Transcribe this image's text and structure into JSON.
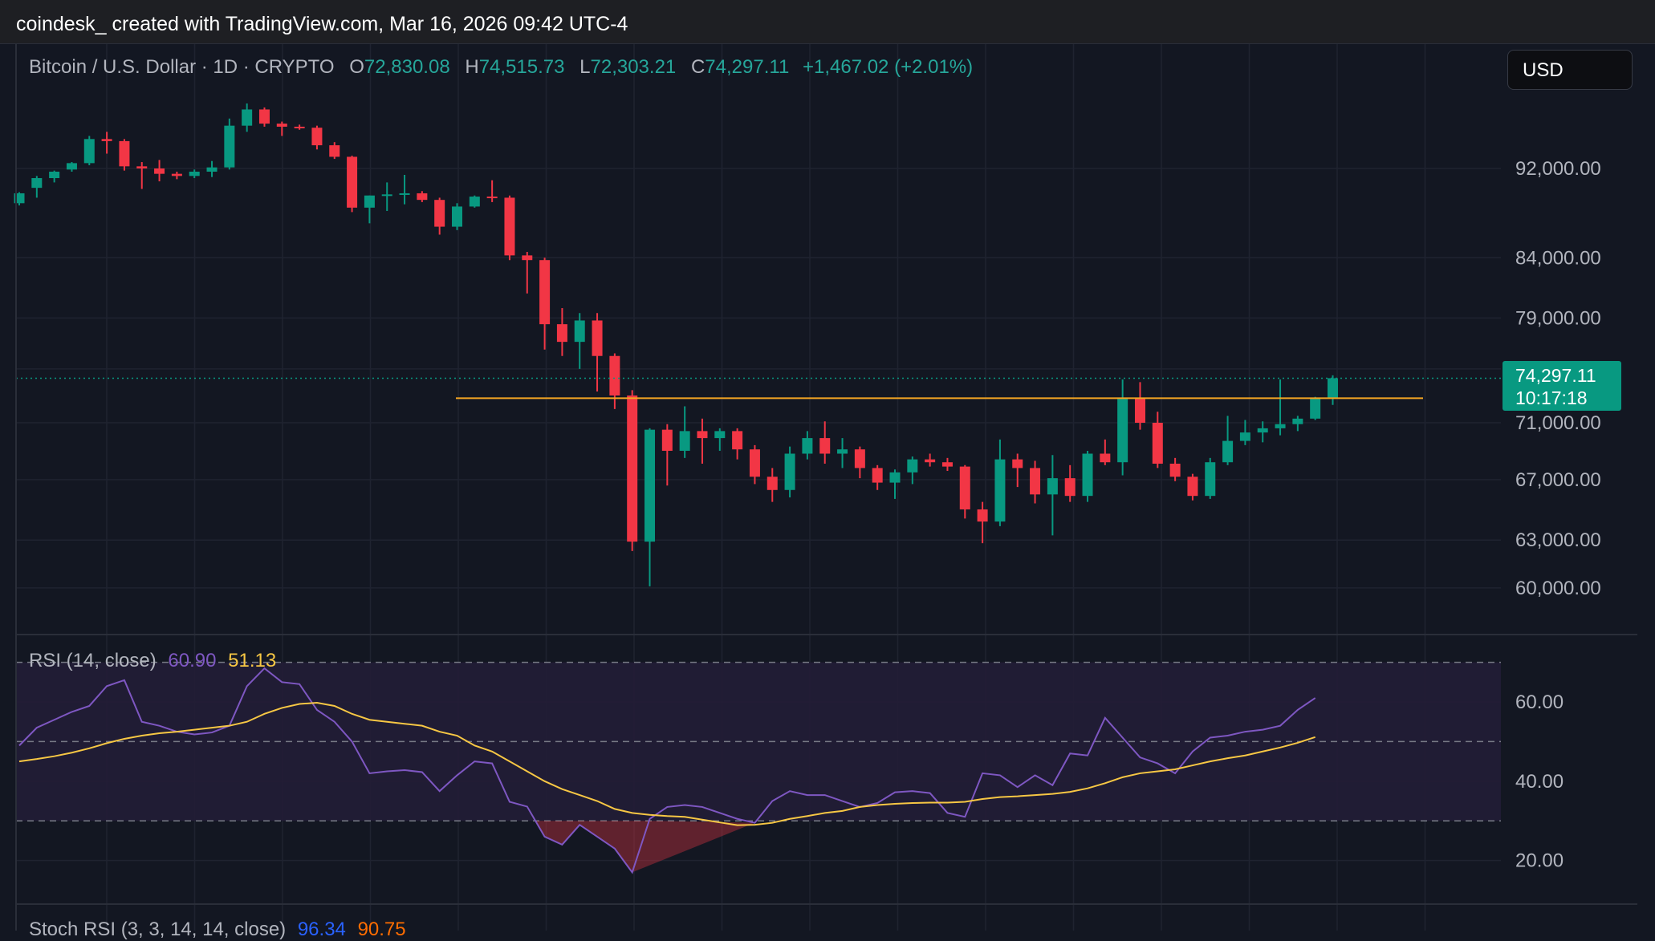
{
  "caption": "coindesk_ created with TradingView.com, Mar 16, 2026 09:42 UTC-4",
  "currency_button": "USD",
  "legend": {
    "symbol": "Bitcoin / U.S. Dollar · 1D · CRYPTO",
    "o_label": "O",
    "o_value": "72,830.08",
    "h_label": "H",
    "h_value": "74,515.73",
    "l_label": "L",
    "l_value": "72,303.21",
    "c_label": "C",
    "c_value": "74,297.11",
    "change": "+1,467.02 (+2.01%)"
  },
  "price_badge": {
    "price": "74,297.11",
    "countdown": "10:17:18"
  },
  "rsi": {
    "label": "RSI (14, close)",
    "rsi_value": "60.90",
    "ma_value": "51.13"
  },
  "stoch": {
    "label": "Stoch RSI (3, 3, 14, 14, close)",
    "k_value": "96.34",
    "d_value": "90.75"
  },
  "colors": {
    "background": "#131722",
    "up": "#089981",
    "down": "#f23645",
    "rsi_line": "#7e57c2",
    "rsi_ma": "#f7c744",
    "level_line": "#f5a623",
    "grid": "#1f2330"
  },
  "chart_data": [
    {
      "type": "candlestick",
      "title": "Bitcoin / U.S. Dollar · 1D · CRYPTO",
      "y_ticks": [
        92000,
        84000,
        79000,
        75000,
        71000,
        67000,
        63000,
        60000
      ],
      "y_tick_labels": [
        "92,000.00",
        "84,000.00",
        "79,000.00",
        "75,000.00",
        "71,000.00",
        "67,000.00",
        "63,000.00",
        "60,000.00"
      ],
      "y_scale": "log",
      "ylim": [
        57500,
        104000
      ],
      "grid": true,
      "horizontal_level": 72800,
      "last_price": 74297.11,
      "candles": [
        {
          "o": 88800,
          "h": 89800,
          "l": 88600,
          "c": 89700
        },
        {
          "o": 90200,
          "h": 91300,
          "l": 89300,
          "c": 91100
        },
        {
          "o": 91100,
          "h": 91800,
          "l": 90700,
          "c": 91700
        },
        {
          "o": 91900,
          "h": 92600,
          "l": 91700,
          "c": 92500
        },
        {
          "o": 92500,
          "h": 95100,
          "l": 92300,
          "c": 94800
        },
        {
          "o": 94800,
          "h": 95500,
          "l": 93400,
          "c": 94600
        },
        {
          "o": 94600,
          "h": 94800,
          "l": 91800,
          "c": 92200
        },
        {
          "o": 92200,
          "h": 92600,
          "l": 90100,
          "c": 92000
        },
        {
          "o": 92000,
          "h": 92800,
          "l": 90800,
          "c": 91500
        },
        {
          "o": 91500,
          "h": 91700,
          "l": 91000,
          "c": 91300
        },
        {
          "o": 91300,
          "h": 91900,
          "l": 91100,
          "c": 91700
        },
        {
          "o": 91700,
          "h": 92700,
          "l": 91200,
          "c": 92100
        },
        {
          "o": 92100,
          "h": 96800,
          "l": 91900,
          "c": 96100
        },
        {
          "o": 96100,
          "h": 98300,
          "l": 95500,
          "c": 97700
        },
        {
          "o": 97700,
          "h": 97900,
          "l": 96000,
          "c": 96300
        },
        {
          "o": 96300,
          "h": 96500,
          "l": 95100,
          "c": 96000
        },
        {
          "o": 96000,
          "h": 96200,
          "l": 95700,
          "c": 95900
        },
        {
          "o": 95900,
          "h": 96100,
          "l": 93800,
          "c": 94200
        },
        {
          "o": 94200,
          "h": 94500,
          "l": 92900,
          "c": 93100
        },
        {
          "o": 93100,
          "h": 93200,
          "l": 88000,
          "c": 88400
        },
        {
          "o": 88400,
          "h": 89500,
          "l": 87000,
          "c": 89500
        },
        {
          "o": 89500,
          "h": 90700,
          "l": 88100,
          "c": 89600
        },
        {
          "o": 89600,
          "h": 91400,
          "l": 88700,
          "c": 89700
        },
        {
          "o": 89700,
          "h": 89900,
          "l": 88900,
          "c": 89100
        },
        {
          "o": 89100,
          "h": 89300,
          "l": 86000,
          "c": 86700
        },
        {
          "o": 86700,
          "h": 88800,
          "l": 86400,
          "c": 88500
        },
        {
          "o": 88500,
          "h": 89500,
          "l": 88400,
          "c": 89400
        },
        {
          "o": 89400,
          "h": 90900,
          "l": 88900,
          "c": 89300
        },
        {
          "o": 89300,
          "h": 89500,
          "l": 83800,
          "c": 84200
        },
        {
          "o": 84200,
          "h": 84500,
          "l": 81000,
          "c": 83800
        },
        {
          "o": 83800,
          "h": 84000,
          "l": 76500,
          "c": 78500
        },
        {
          "o": 78500,
          "h": 79800,
          "l": 76000,
          "c": 77100
        },
        {
          "o": 77100,
          "h": 79400,
          "l": 75000,
          "c": 78800
        },
        {
          "o": 78800,
          "h": 79400,
          "l": 73300,
          "c": 76000
        },
        {
          "o": 76000,
          "h": 76200,
          "l": 72000,
          "c": 73000
        },
        {
          "o": 73000,
          "h": 73400,
          "l": 62300,
          "c": 62900
        },
        {
          "o": 62900,
          "h": 70600,
          "l": 60100,
          "c": 70500
        },
        {
          "o": 70500,
          "h": 70900,
          "l": 66600,
          "c": 69000
        },
        {
          "o": 69000,
          "h": 72200,
          "l": 68500,
          "c": 70400
        },
        {
          "o": 70400,
          "h": 71300,
          "l": 68100,
          "c": 69900
        },
        {
          "o": 69900,
          "h": 70600,
          "l": 69000,
          "c": 70400
        },
        {
          "o": 70400,
          "h": 70600,
          "l": 68400,
          "c": 69100
        },
        {
          "o": 69100,
          "h": 69400,
          "l": 66700,
          "c": 67200
        },
        {
          "o": 67200,
          "h": 67800,
          "l": 65500,
          "c": 66300
        },
        {
          "o": 66300,
          "h": 69300,
          "l": 65800,
          "c": 68800
        },
        {
          "o": 68800,
          "h": 70400,
          "l": 68400,
          "c": 69900
        },
        {
          "o": 69900,
          "h": 71100,
          "l": 68100,
          "c": 68800
        },
        {
          "o": 68800,
          "h": 69900,
          "l": 67800,
          "c": 69100
        },
        {
          "o": 69100,
          "h": 69300,
          "l": 67100,
          "c": 67800
        },
        {
          "o": 67800,
          "h": 68000,
          "l": 66300,
          "c": 66800
        },
        {
          "o": 66800,
          "h": 67700,
          "l": 65700,
          "c": 67500
        },
        {
          "o": 67500,
          "h": 68600,
          "l": 66700,
          "c": 68400
        },
        {
          "o": 68400,
          "h": 68800,
          "l": 67900,
          "c": 68200
        },
        {
          "o": 68200,
          "h": 68500,
          "l": 67600,
          "c": 67900
        },
        {
          "o": 67900,
          "h": 68000,
          "l": 64400,
          "c": 65000
        },
        {
          "o": 65000,
          "h": 65500,
          "l": 62800,
          "c": 64200
        },
        {
          "o": 64200,
          "h": 69800,
          "l": 63900,
          "c": 68400
        },
        {
          "o": 68400,
          "h": 68800,
          "l": 66500,
          "c": 67800
        },
        {
          "o": 67800,
          "h": 68300,
          "l": 65400,
          "c": 66000
        },
        {
          "o": 66000,
          "h": 68700,
          "l": 63300,
          "c": 67100
        },
        {
          "o": 67100,
          "h": 68000,
          "l": 65500,
          "c": 65900
        },
        {
          "o": 65900,
          "h": 69000,
          "l": 65500,
          "c": 68800
        },
        {
          "o": 68800,
          "h": 69800,
          "l": 68000,
          "c": 68200
        },
        {
          "o": 68200,
          "h": 74200,
          "l": 67300,
          "c": 72800
        },
        {
          "o": 72800,
          "h": 74000,
          "l": 70500,
          "c": 71000
        },
        {
          "o": 71000,
          "h": 71800,
          "l": 67800,
          "c": 68100
        },
        {
          "o": 68100,
          "h": 68500,
          "l": 66900,
          "c": 67200
        },
        {
          "o": 67200,
          "h": 67400,
          "l": 65600,
          "c": 65900
        },
        {
          "o": 65900,
          "h": 68500,
          "l": 65700,
          "c": 68200
        },
        {
          "o": 68200,
          "h": 71500,
          "l": 68000,
          "c": 69700
        },
        {
          "o": 69700,
          "h": 71200,
          "l": 69400,
          "c": 70300
        },
        {
          "o": 70300,
          "h": 71100,
          "l": 69600,
          "c": 70600
        },
        {
          "o": 70600,
          "h": 74200,
          "l": 70100,
          "c": 70900
        },
        {
          "o": 70900,
          "h": 71500,
          "l": 70400,
          "c": 71300
        },
        {
          "o": 71300,
          "h": 72900,
          "l": 71200,
          "c": 72800
        },
        {
          "o": 72830.08,
          "h": 74515.73,
          "l": 72303.21,
          "c": 74297.11
        }
      ]
    },
    {
      "type": "line",
      "title": "RSI (14, close)",
      "y_ticks": [
        20,
        40,
        60
      ],
      "y_tick_labels": [
        "20.00",
        "40.00",
        "60.00"
      ],
      "ylim": [
        10,
        76
      ],
      "bands": [
        30,
        50,
        70
      ],
      "series": [
        {
          "name": "RSI",
          "values": [
            49,
            53.5,
            55.5,
            57.5,
            59,
            64,
            65.5,
            55,
            54,
            52.5,
            51.8,
            52.3,
            54,
            64,
            68.5,
            65,
            64.5,
            58,
            55,
            50,
            42,
            42.5,
            42.8,
            42.3,
            37.5,
            41.5,
            45,
            44.5,
            34.8,
            33.6,
            26,
            24,
            29,
            26,
            23,
            17,
            30.5,
            33.5,
            34,
            33.5,
            32,
            30.5,
            29.5,
            35,
            37.5,
            36.5,
            36.5,
            35,
            33.5,
            34.5,
            37.2,
            37.5,
            37,
            32,
            31,
            42,
            41.5,
            38.5,
            41.5,
            39,
            47,
            46.5,
            56,
            51,
            46,
            44.5,
            42,
            47.5,
            51,
            51.5,
            52.5,
            53,
            54,
            58,
            61
          ]
        },
        {
          "name": "RSI-based MA",
          "values": [
            45,
            45.6,
            46.3,
            47.2,
            48.3,
            49.6,
            50.7,
            51.5,
            52.1,
            52.5,
            53,
            53.5,
            54,
            55,
            57,
            58.5,
            59.5,
            59.8,
            59,
            57,
            55.5,
            55,
            54.5,
            54,
            52.5,
            51.5,
            49,
            47.5,
            45,
            42.5,
            40,
            38,
            36.5,
            35,
            33,
            32,
            31.5,
            31.2,
            31,
            30.3,
            29.6,
            28.9,
            29,
            29.5,
            30.5,
            31.2,
            32,
            32.5,
            33.5,
            34,
            34.3,
            34.5,
            34.6,
            34.6,
            34.8,
            35.5,
            36,
            36.2,
            36.5,
            36.8,
            37.3,
            38.2,
            39.5,
            41,
            42,
            42.5,
            43,
            44,
            45,
            45.8,
            46.5,
            47.5,
            48.5,
            49.7,
            51.13
          ]
        }
      ]
    }
  ]
}
